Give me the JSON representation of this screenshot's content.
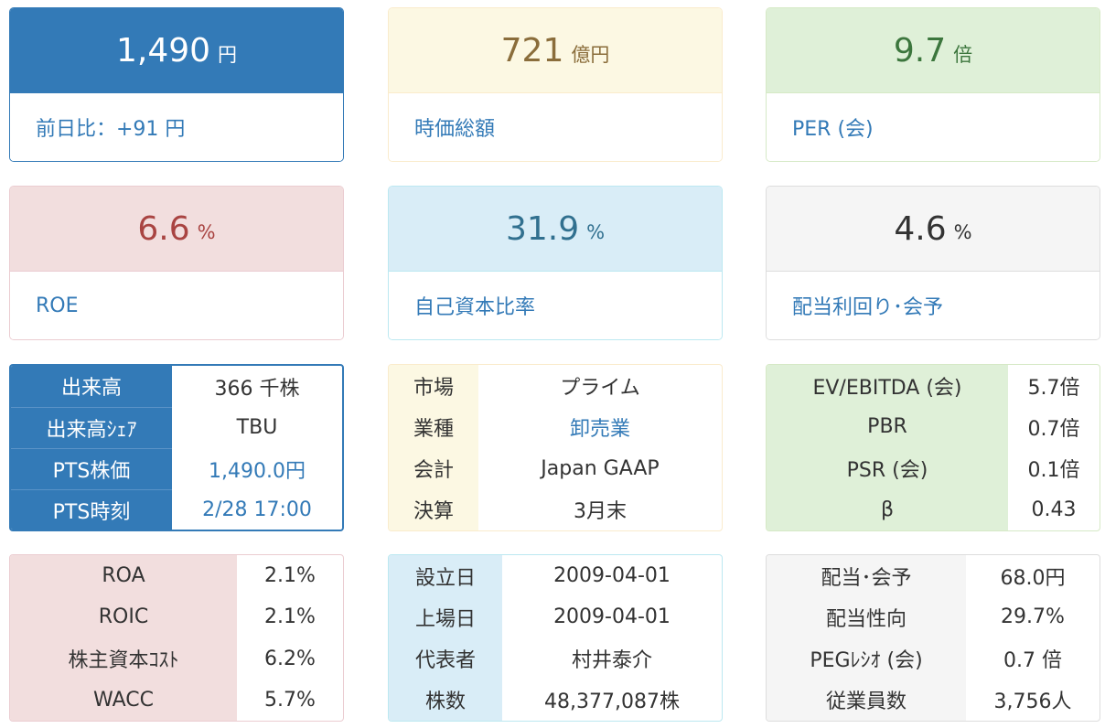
{
  "cards": {
    "price": {
      "value": "1,490",
      "unit": "円",
      "label": "前日比：+91 円"
    },
    "market_cap": {
      "value": "721",
      "unit": "億円",
      "label": "時価総額"
    },
    "per": {
      "value": "9.7",
      "unit": "倍",
      "label": "PER (会)"
    },
    "roe": {
      "value": "6.6",
      "unit": "%",
      "label": "ROE"
    },
    "equity_ratio": {
      "value": "31.9",
      "unit": "%",
      "label": "自己資本比率"
    },
    "dividend_yield": {
      "value": "4.6",
      "unit": "%",
      "label": "配当利回り･会予"
    }
  },
  "tables": {
    "trading": [
      {
        "k": "出来高",
        "v": "366 千株"
      },
      {
        "k": "出来高ｼｪｱ",
        "v": "TBU"
      },
      {
        "k": "PTS株価",
        "v": "1,490.0円"
      },
      {
        "k": "PTS時刻",
        "v": "2/28 17:00"
      }
    ],
    "profile": [
      {
        "k": "市場",
        "v": "プライム"
      },
      {
        "k": "業種",
        "v": "卸売業"
      },
      {
        "k": "会計",
        "v": "Japan GAAP"
      },
      {
        "k": "決算",
        "v": "3月末"
      }
    ],
    "valuation": [
      {
        "k": "EV/EBITDA (会)",
        "v": "5.7倍"
      },
      {
        "k": "PBR",
        "v": "0.7倍"
      },
      {
        "k": "PSR (会)",
        "v": "0.1倍"
      },
      {
        "k": "β",
        "v": "0.43"
      }
    ],
    "returns": [
      {
        "k": "ROA",
        "v": "2.1%"
      },
      {
        "k": "ROIC",
        "v": "2.1%"
      },
      {
        "k": "株主資本ｺｽﾄ",
        "v": "6.2%"
      },
      {
        "k": "WACC",
        "v": "5.7%"
      }
    ],
    "company": [
      {
        "k": "設立日",
        "v": "2009-04-01"
      },
      {
        "k": "上場日",
        "v": "2009-04-01"
      },
      {
        "k": "代表者",
        "v": "村井泰介"
      },
      {
        "k": "株数",
        "v": "48,377,087株"
      }
    ],
    "dividend": [
      {
        "k": "配当･会予",
        "v": "68.0円"
      },
      {
        "k": "配当性向",
        "v": "29.7%"
      },
      {
        "k": "PEGﾚｼｵ (会)",
        "v": "0.7 倍"
      },
      {
        "k": "従業員数",
        "v": "3,756人"
      }
    ]
  }
}
